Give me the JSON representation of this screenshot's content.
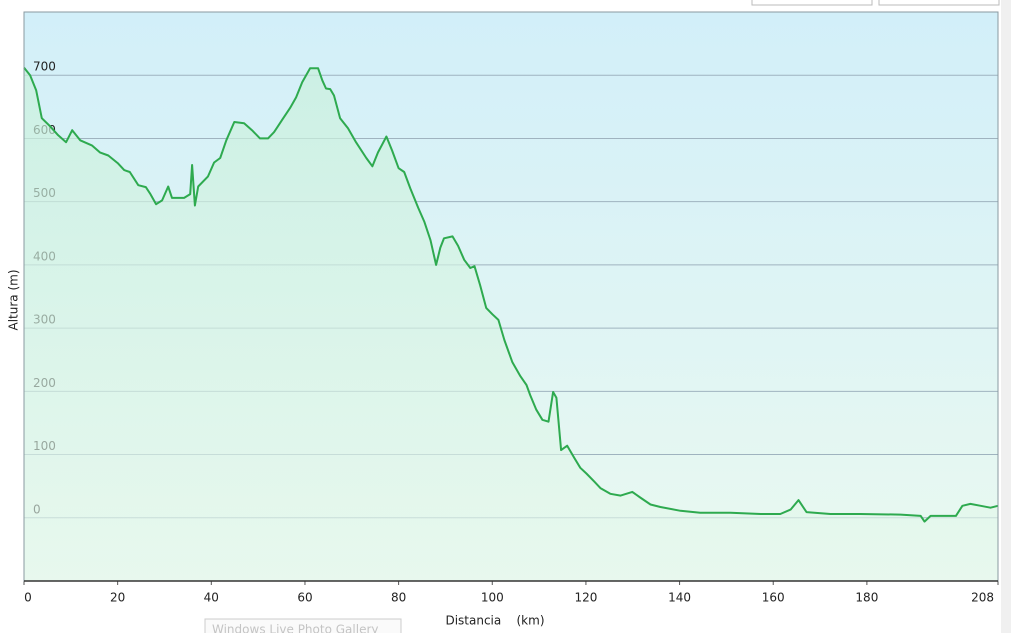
{
  "chart_data": {
    "type": "area-line",
    "x_label": "Distancia    (km)",
    "y_label": "Altura (m)",
    "color": "#2eaa4f",
    "grid": true,
    "xlim": [
      0,
      208
    ],
    "xticks": [
      0,
      20,
      40,
      60,
      80,
      100,
      120,
      140,
      160,
      180,
      208
    ],
    "ylim": [
      -100,
      800
    ],
    "yticks": [
      0,
      100,
      200,
      300,
      400,
      500,
      600,
      700
    ],
    "x": [
      0,
      1.3,
      2.6,
      3.8,
      5.6,
      7.3,
      9,
      10.3,
      12,
      14.5,
      16.2,
      18,
      20,
      21.4,
      22.6,
      24.4,
      26,
      26.9,
      28.2,
      29.5,
      30.8,
      31.6,
      34.2,
      35.5,
      35.9,
      36.5,
      37.2,
      39.3,
      40.6,
      41.9,
      43.2,
      44.9,
      47,
      48.7,
      50.4,
      52.1,
      53.4,
      55.1,
      56.8,
      58.1,
      59.4,
      61.1,
      62.8,
      63.7,
      64.5,
      65.4,
      66.2,
      67.5,
      69.2,
      70.9,
      73.1,
      74.4,
      75.6,
      77.4,
      78.6,
      80,
      81.2,
      82.5,
      84.2,
      85.5,
      86.8,
      88,
      88.9,
      89.7,
      91.5,
      92.7,
      94,
      95.3,
      96.2,
      97.4,
      98.7,
      100,
      101.3,
      102.6,
      104.3,
      106,
      107.3,
      108.1,
      109.4,
      110.7,
      112,
      113,
      113.7,
      114.7,
      116,
      117.5,
      118.8,
      120.1,
      121.8,
      123.1,
      125.2,
      127.4,
      129.9,
      131.6,
      133.8,
      135.9,
      140.2,
      144.4,
      150.9,
      157.3,
      161.5,
      163.7,
      165.4,
      167.1,
      172.2,
      178.6,
      187.2,
      191.5,
      192.3,
      193.6,
      199,
      200.4,
      202.1,
      204.3,
      206.4,
      208
    ],
    "values": [
      712,
      700,
      676,
      632,
      619,
      605,
      594,
      613,
      597,
      589,
      578,
      573,
      561,
      550,
      547,
      526,
      523,
      513,
      496,
      502,
      524,
      506,
      506,
      512,
      558,
      494,
      524,
      540,
      562,
      569,
      597,
      626,
      624,
      613,
      600,
      600,
      610,
      629,
      648,
      665,
      689,
      711,
      711,
      692,
      679,
      678,
      668,
      632,
      616,
      594,
      569,
      556,
      578,
      603,
      581,
      553,
      547,
      521,
      490,
      468,
      439,
      400,
      427,
      442,
      445,
      430,
      408,
      395,
      398,
      368,
      332,
      322,
      313,
      281,
      246,
      224,
      210,
      194,
      171,
      155,
      152,
      199,
      190,
      107,
      114,
      95,
      79,
      70,
      57,
      47,
      38,
      35,
      41,
      32,
      21,
      17,
      11,
      8,
      8,
      6,
      6,
      13,
      28,
      9,
      6,
      6,
      5,
      3,
      -6,
      3,
      3,
      19,
      22,
      19,
      16,
      19
    ]
  },
  "tooltip": "Windows Live Photo Gallery"
}
